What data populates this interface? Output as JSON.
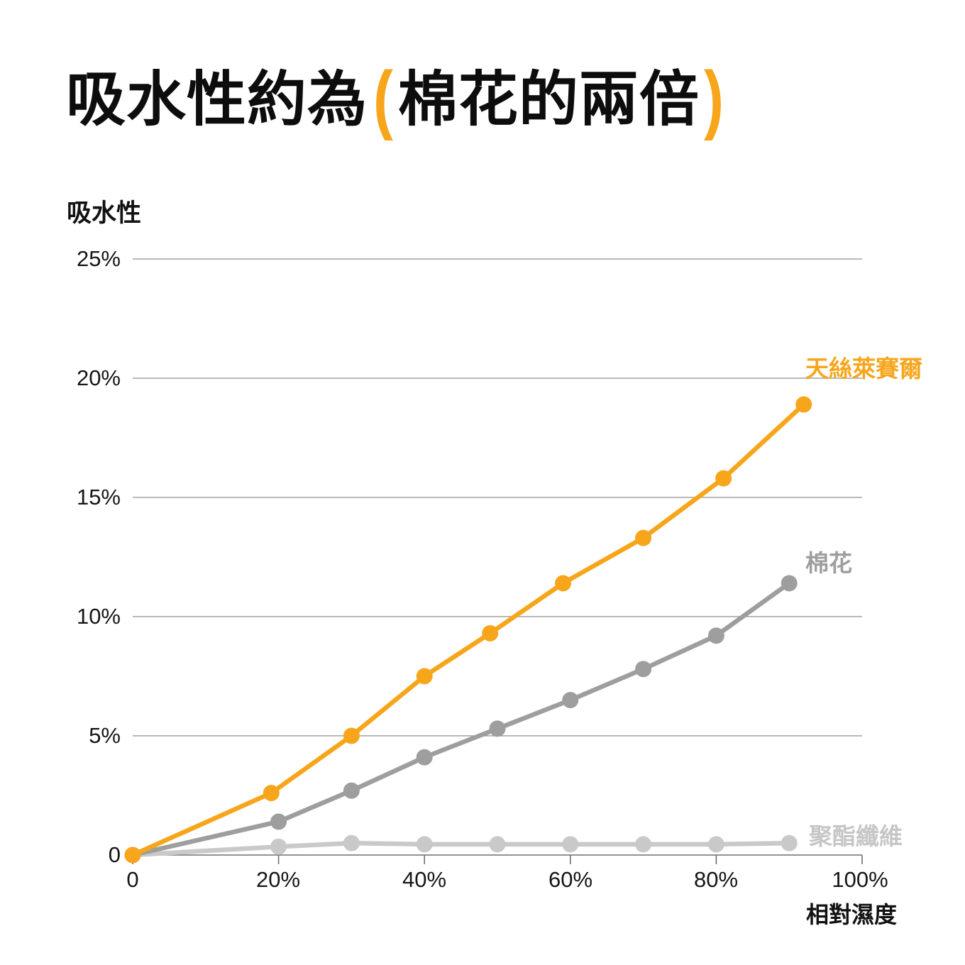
{
  "title": {
    "pre": "吸水性約為",
    "open_paren": "(",
    "highlight": "棉花的兩倍",
    "close_paren": ")"
  },
  "colors": {
    "accent_orange": "#F7A61C",
    "cotton_gray": "#9E9E9E",
    "polyester_gray": "#C9C9C9",
    "gridline_gray": "#8F8F8F",
    "axis_gray": "#6F6F6F",
    "text_black": "#111111"
  },
  "chart_data": {
    "type": "line",
    "title": "吸水性約為(棉花的兩倍)",
    "y_axis_title": "吸水性",
    "x_axis_title": "相對濕度",
    "xlabel": "相對濕度",
    "ylabel": "吸水性",
    "xlim": [
      0,
      100
    ],
    "ylim": [
      0,
      25
    ],
    "grid": "horizontal",
    "legend_position": "inline-right-of-lines",
    "y_tick_labels": [
      "25%",
      "20%",
      "15%",
      "10%",
      "5%",
      "0"
    ],
    "y_tick_values": [
      25,
      20,
      15,
      10,
      5,
      0
    ],
    "x_tick_labels": [
      "0",
      "20%",
      "40%",
      "60%",
      "80%",
      "100%"
    ],
    "x_tick_values": [
      0,
      20,
      40,
      60,
      80,
      100
    ],
    "series": [
      {
        "name": "天絲萊賽爾",
        "color": "#F7A61C",
        "x": [
          0,
          19,
          30,
          40,
          49,
          59,
          70,
          81,
          92
        ],
        "y": [
          0,
          2.6,
          5.0,
          7.5,
          9.3,
          11.4,
          13.3,
          15.8,
          18.9
        ]
      },
      {
        "name": "棉花",
        "color": "#9E9E9E",
        "x": [
          0,
          20,
          30,
          40,
          50,
          60,
          70,
          80,
          90
        ],
        "y": [
          0,
          1.4,
          2.7,
          4.1,
          5.3,
          6.5,
          7.8,
          9.2,
          11.4
        ]
      },
      {
        "name": "聚酯纖維",
        "color": "#C9C9C9",
        "x": [
          0,
          20,
          30,
          40,
          50,
          60,
          70,
          80,
          90
        ],
        "y": [
          0,
          0.35,
          0.5,
          0.45,
          0.45,
          0.45,
          0.45,
          0.45,
          0.5
        ]
      }
    ]
  }
}
